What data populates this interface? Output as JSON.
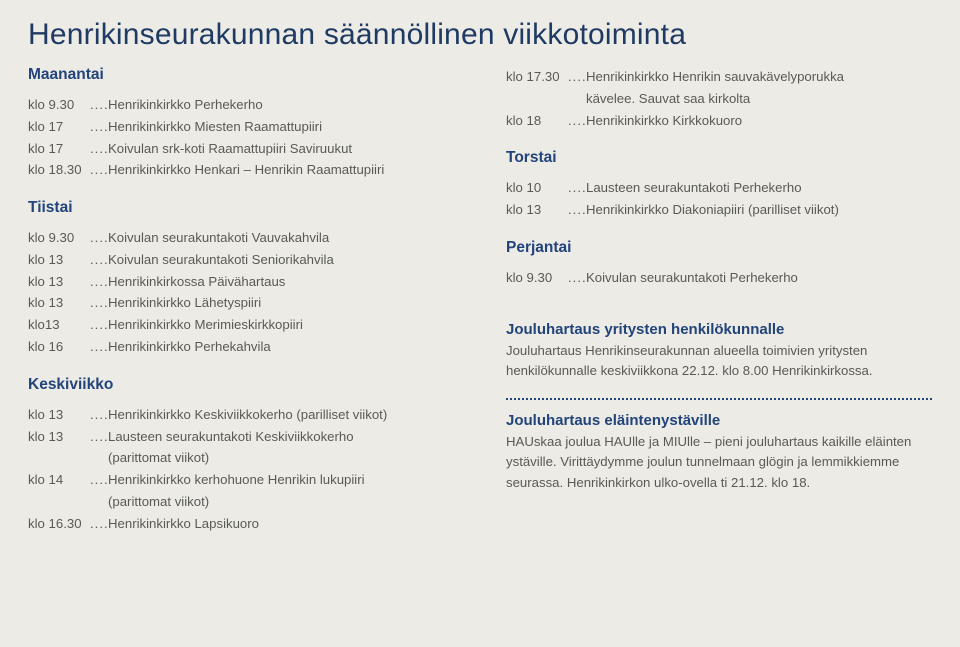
{
  "title": "Henrikinseurakunnan säännöllinen viikkotoiminta",
  "left": {
    "maanantai": {
      "head": "Maanantai",
      "rows": [
        {
          "time": "klo 9.30",
          "desc": "Henrikinkirkko Perhekerho"
        },
        {
          "time": "klo 17",
          "desc": "Henrikinkirkko Miesten Raamattupiiri"
        },
        {
          "time": "klo 17",
          "desc": "Koivulan srk-koti Raamattupiiri Saviruukut"
        },
        {
          "time": "klo 18.30",
          "desc": "Henrikinkirkko Henkari – Henrikin Raamattupiiri"
        }
      ]
    },
    "tiistai": {
      "head": "Tiistai",
      "rows": [
        {
          "time": "klo 9.30",
          "desc": "Koivulan seurakuntakoti Vauvakahvila"
        },
        {
          "time": "klo 13",
          "desc": "Koivulan seurakuntakoti Seniorikahvila"
        },
        {
          "time": "klo 13",
          "desc": "Henrikinkirkossa Päivähartaus"
        },
        {
          "time": "klo 13",
          "desc": "Henrikinkirkko Lähetyspiiri"
        },
        {
          "time": "klo13",
          "desc": "Henrikinkirkko Merimieskirkkopiiri"
        },
        {
          "time": "klo 16",
          "desc": "Henrikinkirkko Perhekahvila"
        }
      ]
    },
    "keskiviikko": {
      "head": "Keskiviikko",
      "rows": [
        {
          "time": "klo 13",
          "desc": "Henrikinkirkko Keskiviikkokerho (parilliset viikot)"
        },
        {
          "time": "klo 13",
          "desc": "Lausteen seurakuntakoti Keskiviikkokerho"
        },
        {
          "time": "",
          "desc": "(parittomat viikot)",
          "indent": true
        },
        {
          "time": "klo 14",
          "desc": "Henrikinkirkko kerhohuone Henrikin lukupiiri"
        },
        {
          "time": "",
          "desc": "(parittomat viikot)",
          "indent": true
        },
        {
          "time": "klo 16.30",
          "desc": "Henrikinkirkko Lapsikuoro"
        }
      ]
    }
  },
  "right": {
    "top": {
      "rows": [
        {
          "time": "klo 17.30",
          "desc": "Henrikinkirkko Henrikin sauvakävelyporukka"
        },
        {
          "time": "",
          "desc": "kävelee. Sauvat saa kirkolta",
          "indent": true
        },
        {
          "time": "klo 18",
          "desc": "Henrikinkirkko Kirkkokuoro"
        }
      ]
    },
    "torstai": {
      "head": "Torstai",
      "rows": [
        {
          "time": "klo 10",
          "desc": "Lausteen seurakuntakoti Perhekerho"
        },
        {
          "time": "klo 13",
          "desc": "Henrikinkirkko Diakoniapiiri (parilliset viikot)"
        }
      ]
    },
    "perjantai": {
      "head": "Perjantai",
      "rows": [
        {
          "time": "klo 9.30",
          "desc": "Koivulan seurakuntakoti Perhekerho"
        }
      ]
    },
    "note1": {
      "title": "Jouluhartaus yritysten henkilökunnalle",
      "text": "Jouluhartaus Henrikinseurakunnan alueella toimivien yritysten henkilökunnalle keskiviikkona 22.12. klo 8.00 Henrikinkirkossa."
    },
    "note2": {
      "title": "Jouluhartaus eläintenystäville",
      "text": "HAUskaa joulua HAUlle ja MIUlle – pieni jouluhartaus kaikille eläinten ystäville. Virittäydymme joulun tunnelmaan glögin ja lemmikkiemme seurassa. Henrikinkirkon ulko-ovella ti 21.12. klo 18."
    }
  }
}
